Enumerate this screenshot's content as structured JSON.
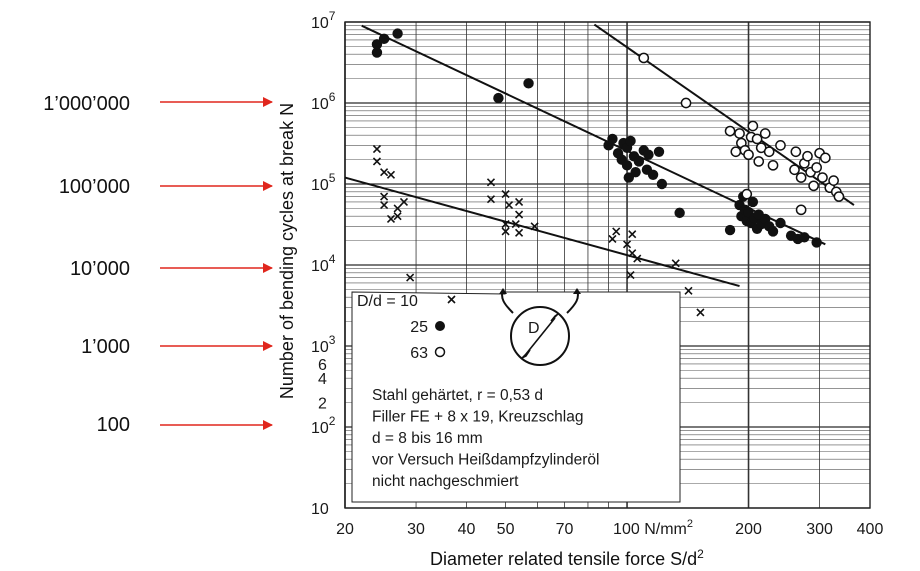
{
  "chart_data": {
    "type": "scatter",
    "title": "",
    "xlabel": "Diameter related tensile force S/d",
    "xlabel_sup": "2",
    "ylabel": "Number of bending cycles at break N",
    "xscale": "log",
    "yscale": "log",
    "xlim": [
      20,
      400
    ],
    "ylim": [
      10,
      10000000
    ],
    "grid": true,
    "x_ticks": [
      "20",
      "30",
      "40",
      "50",
      "70",
      "100 N/mm",
      "200",
      "300",
      "400"
    ],
    "x_unit_sup": "2",
    "y_ticks": {
      "decades": [
        "10",
        "10",
        "10",
        "10",
        "10",
        "10",
        "10"
      ],
      "exponents": [
        "7",
        "6",
        "5",
        "4",
        "3",
        "2",
        ""
      ],
      "minor": [
        "6",
        "4",
        "2"
      ]
    },
    "legend": {
      "header": "D/d = 10",
      "entries": [
        {
          "label": "10",
          "marker": "×"
        },
        {
          "label": "25",
          "marker": "●"
        },
        {
          "label": "63",
          "marker": "○"
        }
      ],
      "placement": "lower-center",
      "sheave_label": "D"
    },
    "notes": [
      "Stahl gehärtet, r = 0,53 d",
      "Filler FE    + 8 x 19, Kreuzschlag",
      "d = 8 bis 16 mm",
      "vor Versuch Heißdampfzylinderöl",
      "nicht nachgeschmiert"
    ],
    "annotations": [
      "1’000’000",
      "100’000",
      "10’000",
      "1’000",
      "100"
    ],
    "annotation_arrow_color": "#e0261d",
    "series": [
      {
        "marker": "x",
        "points": [
          [
            24,
            270000
          ],
          [
            24,
            190000
          ],
          [
            25,
            140000
          ],
          [
            26,
            130000
          ],
          [
            25,
            70000
          ],
          [
            25,
            55000
          ],
          [
            27,
            50000
          ],
          [
            27,
            40000
          ],
          [
            26,
            37000
          ],
          [
            28,
            60000
          ],
          [
            29,
            7000
          ],
          [
            46,
            105000
          ],
          [
            46,
            65000
          ],
          [
            50,
            75000
          ],
          [
            51,
            55000
          ],
          [
            54,
            60000
          ],
          [
            54,
            42000
          ],
          [
            50,
            32000
          ],
          [
            50,
            26000
          ],
          [
            53,
            32000
          ],
          [
            54,
            25000
          ],
          [
            59,
            30000
          ],
          [
            92,
            21000
          ],
          [
            94,
            26000
          ],
          [
            100,
            18000
          ],
          [
            103,
            24000
          ],
          [
            103,
            14000
          ],
          [
            106,
            12000
          ],
          [
            102,
            7500
          ],
          [
            132,
            10500
          ],
          [
            142,
            4800
          ],
          [
            152,
            2600
          ]
        ]
      },
      {
        "marker": "dot",
        "points": [
          [
            24,
            4200000
          ],
          [
            24,
            5300000
          ],
          [
            25,
            6200000
          ],
          [
            27,
            7200000
          ],
          [
            48,
            1150000
          ],
          [
            57,
            1750000
          ],
          [
            90,
            300000
          ],
          [
            92,
            360000
          ],
          [
            95,
            240000
          ],
          [
            97,
            200000
          ],
          [
            98,
            320000
          ],
          [
            100,
            170000
          ],
          [
            100,
            280000
          ],
          [
            101,
            120000
          ],
          [
            102,
            340000
          ],
          [
            104,
            220000
          ],
          [
            105,
            140000
          ],
          [
            107,
            190000
          ],
          [
            110,
            260000
          ],
          [
            112,
            150000
          ],
          [
            113,
            230000
          ],
          [
            116,
            130000
          ],
          [
            120,
            250000
          ],
          [
            122,
            100000
          ],
          [
            135,
            44000
          ],
          [
            180,
            27000
          ],
          [
            190,
            55000
          ],
          [
            192,
            40000
          ],
          [
            194,
            70000
          ],
          [
            196,
            48000
          ],
          [
            198,
            35000
          ],
          [
            200,
            45000
          ],
          [
            203,
            33000
          ],
          [
            205,
            60000
          ],
          [
            207,
            38000
          ],
          [
            210,
            28000
          ],
          [
            212,
            42000
          ],
          [
            215,
            32000
          ],
          [
            220,
            37000
          ],
          [
            225,
            30000
          ],
          [
            230,
            26000
          ],
          [
            240,
            33000
          ],
          [
            255,
            23000
          ],
          [
            265,
            21000
          ],
          [
            275,
            22000
          ],
          [
            295,
            19000
          ]
        ]
      },
      {
        "marker": "circle",
        "points": [
          [
            110,
            3600000
          ],
          [
            140,
            1000000
          ],
          [
            180,
            450000
          ],
          [
            186,
            250000
          ],
          [
            190,
            420000
          ],
          [
            192,
            320000
          ],
          [
            196,
            260000
          ],
          [
            200,
            230000
          ],
          [
            203,
            380000
          ],
          [
            205,
            520000
          ],
          [
            210,
            360000
          ],
          [
            212,
            190000
          ],
          [
            215,
            280000
          ],
          [
            220,
            420000
          ],
          [
            225,
            250000
          ],
          [
            230,
            170000
          ],
          [
            240,
            300000
          ],
          [
            260,
            150000
          ],
          [
            262,
            250000
          ],
          [
            270,
            120000
          ],
          [
            275,
            180000
          ],
          [
            280,
            220000
          ],
          [
            285,
            140000
          ],
          [
            290,
            95000
          ],
          [
            295,
            160000
          ],
          [
            300,
            240000
          ],
          [
            305,
            120000
          ],
          [
            310,
            210000
          ],
          [
            318,
            90000
          ],
          [
            325,
            110000
          ],
          [
            330,
            80000
          ],
          [
            335,
            70000
          ],
          [
            270,
            48000
          ],
          [
            198,
            75000
          ]
        ]
      }
    ],
    "fit_lines": [
      {
        "series": "10",
        "from": [
          20,
          120000
        ],
        "to": [
          190,
          5500
        ]
      },
      {
        "series": "25",
        "from": [
          22,
          9000000
        ],
        "to": [
          310,
          18000
        ]
      },
      {
        "series": "63",
        "from": [
          83,
          9300000
        ],
        "to": [
          365,
          55000
        ]
      }
    ]
  }
}
